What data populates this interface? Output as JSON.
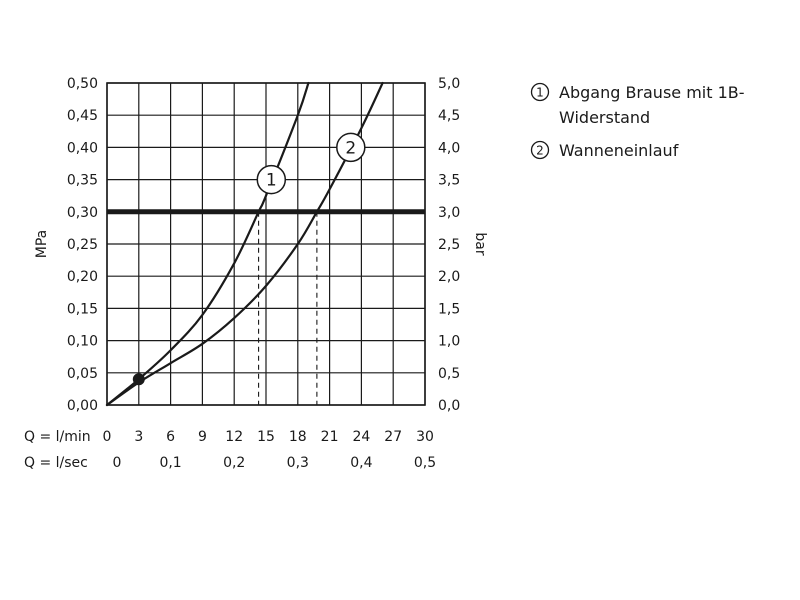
{
  "chart_data": {
    "type": "line",
    "xlim": [
      0,
      30
    ],
    "ylim": [
      0,
      0.5
    ],
    "x_ticks_lmin": [
      "0",
      "3",
      "6",
      "9",
      "12",
      "15",
      "18",
      "21",
      "24",
      "27",
      "30"
    ],
    "x_ticks_lsec": [
      "0",
      "0,1",
      "0,2",
      "0,3",
      "0,4",
      "0,5"
    ],
    "y_ticks_mpa": [
      "0,00",
      "0,05",
      "0,10",
      "0,15",
      "0,20",
      "0,25",
      "0,30",
      "0,35",
      "0,40",
      "0,45",
      "0,50"
    ],
    "y_ticks_bar": [
      "0,0",
      "0,5",
      "1,0",
      "1,5",
      "2,0",
      "2,5",
      "3,0",
      "3,5",
      "4,0",
      "4,5",
      "5,0"
    ],
    "xlabel_lmin": "Q = l/min",
    "xlabel_lsec": "Q = l/sec",
    "ylabel_left": "MPa",
    "ylabel_right": "bar",
    "grid": true,
    "reference_pressure": 0.3,
    "series": [
      {
        "name": "1",
        "x": [
          0,
          3,
          6,
          9,
          12,
          14.3,
          15,
          18,
          19
        ],
        "y": [
          0,
          0.04,
          0.085,
          0.14,
          0.22,
          0.3,
          0.325,
          0.45,
          0.5
        ]
      },
      {
        "name": "2",
        "x": [
          0,
          3,
          6,
          9,
          12,
          15,
          18,
          19.8,
          21,
          24,
          26
        ],
        "y": [
          0,
          0.035,
          0.065,
          0.095,
          0.135,
          0.185,
          0.25,
          0.3,
          0.335,
          0.43,
          0.5
        ]
      }
    ],
    "marker_point": {
      "x": 3,
      "y": 0.04
    },
    "series_markers": [
      {
        "label": "1",
        "x": 15.5,
        "y": 0.35
      },
      {
        "label": "2",
        "x": 23,
        "y": 0.4
      }
    ],
    "drop_lines": [
      {
        "x": 14.3,
        "y": 0.3
      },
      {
        "x": 19.8,
        "y": 0.3
      }
    ]
  },
  "legend": {
    "items": [
      {
        "number": "1",
        "text": "Abgang Brause mit 1B-Widerstand"
      },
      {
        "number": "2",
        "text": "Wanneneinlauf"
      }
    ]
  }
}
